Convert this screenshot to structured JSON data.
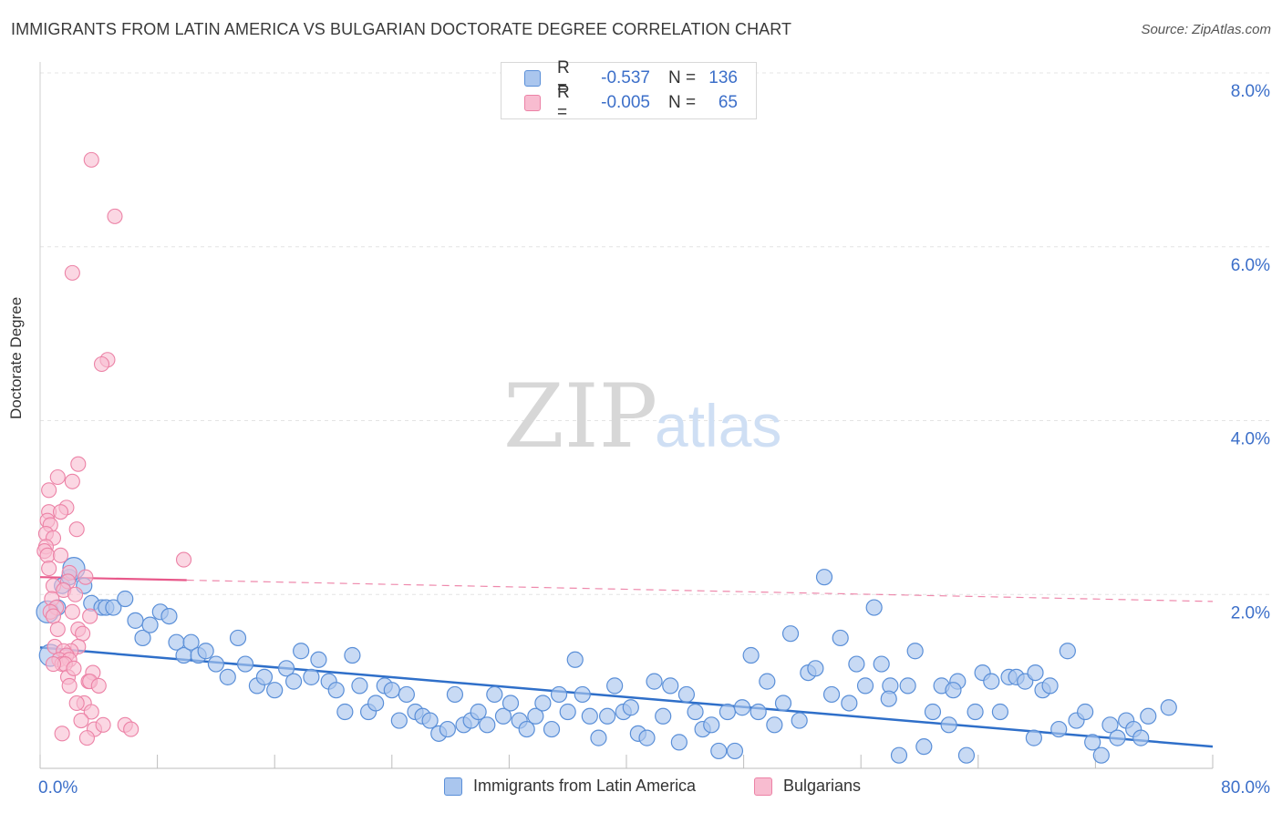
{
  "title": "IMMIGRANTS FROM LATIN AMERICA VS BULGARIAN DOCTORATE DEGREE CORRELATION CHART",
  "source": "Source: ZipAtlas.com",
  "watermark": {
    "zip": "ZIP",
    "atlas": "atlas"
  },
  "legend_top": {
    "rows": [
      {
        "r_label": "R =",
        "r_value": "-0.537",
        "n_label": "N =",
        "n_value": "136"
      },
      {
        "r_label": "R =",
        "r_value": "-0.005",
        "n_label": "N =",
        "n_value": "65"
      }
    ]
  },
  "legend_bottom": {
    "series1": "Immigrants from Latin America",
    "series2": "Bulgarians"
  },
  "colors": {
    "blue_fill": "#aac6ee",
    "blue_stroke": "#5a8fd8",
    "blue_line": "#2f6fc9",
    "pink_fill": "#f8bcd0",
    "pink_stroke": "#ec82a6",
    "pink_line": "#e8588a",
    "tick_text": "#3c6fc9",
    "grid": "#e4e4e4"
  },
  "chart_data": {
    "type": "scatter",
    "title": "IMMIGRANTS FROM LATIN AMERICA VS BULGARIAN DOCTORATE DEGREE CORRELATION CHART",
    "xlabel": "",
    "ylabel": "Doctorate Degree",
    "xlim": [
      0,
      80
    ],
    "ylim": [
      0,
      8.0
    ],
    "x_tick_labels": [
      "0.0%",
      "80.0%"
    ],
    "y_ticks": [
      2.0,
      4.0,
      6.0,
      8.0
    ],
    "y_tick_labels": [
      "2.0%",
      "4.0%",
      "6.0%",
      "8.0%"
    ],
    "grid": true,
    "series": [
      {
        "name": "Immigrants from Latin America",
        "r": -0.537,
        "n": 136,
        "trend": {
          "x": [
            0,
            80
          ],
          "y": [
            1.39,
            0.25
          ]
        },
        "points": [
          [
            0.5,
            1.8,
            2
          ],
          [
            0.7,
            1.3,
            2
          ],
          [
            1.2,
            1.85,
            1
          ],
          [
            1.5,
            2.1,
            1
          ],
          [
            2.0,
            2.2,
            1
          ],
          [
            2.3,
            2.3,
            2
          ],
          [
            3.0,
            2.1,
            1
          ],
          [
            3.5,
            1.9,
            1
          ],
          [
            4.2,
            1.85,
            1
          ],
          [
            4.5,
            1.85,
            1
          ],
          [
            5.0,
            1.85,
            1
          ],
          [
            5.8,
            1.95,
            1
          ],
          [
            6.5,
            1.7,
            1
          ],
          [
            7.0,
            1.5,
            1
          ],
          [
            7.5,
            1.65,
            1
          ],
          [
            8.2,
            1.8,
            1
          ],
          [
            8.8,
            1.75,
            1
          ],
          [
            9.3,
            1.45,
            1
          ],
          [
            9.8,
            1.3,
            1
          ],
          [
            10.3,
            1.45,
            1
          ],
          [
            10.8,
            1.3,
            1
          ],
          [
            11.3,
            1.35,
            1
          ],
          [
            12.0,
            1.2,
            1
          ],
          [
            12.8,
            1.05,
            1
          ],
          [
            13.5,
            1.5,
            1
          ],
          [
            14.0,
            1.2,
            1
          ],
          [
            14.8,
            0.95,
            1
          ],
          [
            15.3,
            1.05,
            1
          ],
          [
            16.0,
            0.9,
            1
          ],
          [
            16.8,
            1.15,
            1
          ],
          [
            17.3,
            1.0,
            1
          ],
          [
            17.8,
            1.35,
            1
          ],
          [
            18.5,
            1.05,
            1
          ],
          [
            19.0,
            1.25,
            1
          ],
          [
            19.7,
            1.0,
            1
          ],
          [
            20.2,
            0.9,
            1
          ],
          [
            20.8,
            0.65,
            1
          ],
          [
            21.3,
            1.3,
            1
          ],
          [
            21.8,
            0.95,
            1
          ],
          [
            22.4,
            0.65,
            1
          ],
          [
            22.9,
            0.75,
            1
          ],
          [
            23.5,
            0.95,
            1
          ],
          [
            24.0,
            0.9,
            1
          ],
          [
            24.5,
            0.55,
            1
          ],
          [
            25.0,
            0.85,
            1
          ],
          [
            25.6,
            0.65,
            1
          ],
          [
            26.1,
            0.6,
            1
          ],
          [
            26.6,
            0.55,
            1
          ],
          [
            27.2,
            0.4,
            1
          ],
          [
            27.8,
            0.45,
            1
          ],
          [
            28.3,
            0.85,
            1
          ],
          [
            28.9,
            0.5,
            1
          ],
          [
            29.4,
            0.55,
            1
          ],
          [
            29.9,
            0.65,
            1
          ],
          [
            30.5,
            0.5,
            1
          ],
          [
            31.0,
            0.85,
            1
          ],
          [
            31.6,
            0.6,
            1
          ],
          [
            32.1,
            0.75,
            1
          ],
          [
            32.7,
            0.55,
            1
          ],
          [
            33.2,
            0.45,
            1
          ],
          [
            33.8,
            0.6,
            1
          ],
          [
            34.3,
            0.75,
            1
          ],
          [
            34.9,
            0.45,
            1
          ],
          [
            35.4,
            0.85,
            1
          ],
          [
            36.0,
            0.65,
            1
          ],
          [
            36.5,
            1.25,
            1
          ],
          [
            37.0,
            0.85,
            1
          ],
          [
            37.5,
            0.6,
            1
          ],
          [
            38.1,
            0.35,
            1
          ],
          [
            38.7,
            0.6,
            1
          ],
          [
            39.2,
            0.95,
            1
          ],
          [
            39.8,
            0.65,
            1
          ],
          [
            40.3,
            0.7,
            1
          ],
          [
            40.8,
            0.4,
            1
          ],
          [
            41.4,
            0.35,
            1
          ],
          [
            41.9,
            1.0,
            1
          ],
          [
            42.5,
            0.6,
            1
          ],
          [
            43.0,
            0.95,
            1
          ],
          [
            43.6,
            0.3,
            1
          ],
          [
            44.1,
            0.85,
            1
          ],
          [
            44.7,
            0.65,
            1
          ],
          [
            45.2,
            0.45,
            1
          ],
          [
            45.8,
            0.5,
            1
          ],
          [
            46.3,
            0.2,
            1
          ],
          [
            46.9,
            0.65,
            1
          ],
          [
            47.4,
            0.2,
            1
          ],
          [
            47.9,
            0.7,
            1
          ],
          [
            48.5,
            1.3,
            1
          ],
          [
            49.0,
            0.65,
            1
          ],
          [
            49.6,
            1.0,
            1
          ],
          [
            50.1,
            0.5,
            1
          ],
          [
            50.7,
            0.75,
            1
          ],
          [
            51.2,
            1.55,
            1
          ],
          [
            51.8,
            0.55,
            1
          ],
          [
            52.4,
            1.1,
            1
          ],
          [
            52.9,
            1.15,
            1
          ],
          [
            53.5,
            2.2,
            1
          ],
          [
            54.0,
            0.85,
            1
          ],
          [
            54.6,
            1.5,
            1
          ],
          [
            55.2,
            0.75,
            1
          ],
          [
            55.7,
            1.2,
            1
          ],
          [
            56.3,
            0.95,
            1
          ],
          [
            56.9,
            1.85,
            1
          ],
          [
            57.4,
            1.2,
            1
          ],
          [
            58.0,
            0.95,
            1
          ],
          [
            58.6,
            0.15,
            1
          ],
          [
            59.2,
            0.95,
            1
          ],
          [
            59.7,
            1.35,
            1
          ],
          [
            60.3,
            0.25,
            1
          ],
          [
            60.9,
            0.65,
            1
          ],
          [
            61.5,
            0.95,
            1
          ],
          [
            62.0,
            0.5,
            1
          ],
          [
            62.6,
            1.0,
            1
          ],
          [
            63.2,
            0.15,
            1
          ],
          [
            63.8,
            0.65,
            1
          ],
          [
            64.3,
            1.1,
            1
          ],
          [
            64.9,
            1.0,
            1
          ],
          [
            65.5,
            0.65,
            1
          ],
          [
            66.1,
            1.05,
            1
          ],
          [
            66.6,
            1.05,
            1
          ],
          [
            67.2,
            1.0,
            1
          ],
          [
            67.8,
            0.35,
            1
          ],
          [
            68.4,
            0.9,
            1
          ],
          [
            68.9,
            0.95,
            1
          ],
          [
            69.5,
            0.45,
            1
          ],
          [
            70.1,
            1.35,
            1
          ],
          [
            70.7,
            0.55,
            1
          ],
          [
            71.3,
            0.65,
            1
          ],
          [
            71.8,
            0.3,
            1
          ],
          [
            72.4,
            0.15,
            1
          ],
          [
            73.0,
            0.5,
            1
          ],
          [
            73.5,
            0.35,
            1
          ],
          [
            74.1,
            0.55,
            1
          ],
          [
            74.6,
            0.45,
            1
          ],
          [
            75.1,
            0.35,
            1
          ],
          [
            75.6,
            0.6,
            1
          ],
          [
            77.0,
            0.7,
            1
          ],
          [
            67.9,
            1.1,
            1
          ],
          [
            62.3,
            0.9,
            1
          ],
          [
            57.9,
            0.8,
            1
          ]
        ]
      },
      {
        "name": "Bulgarians",
        "r": -0.005,
        "n": 65,
        "trend": {
          "x": [
            0,
            80
          ],
          "y": [
            2.2,
            1.92
          ]
        },
        "points": [
          [
            3.5,
            7.0
          ],
          [
            5.1,
            6.35
          ],
          [
            2.2,
            5.7
          ],
          [
            4.6,
            4.7
          ],
          [
            4.2,
            4.65
          ],
          [
            2.6,
            3.5
          ],
          [
            1.2,
            3.35
          ],
          [
            2.2,
            3.3
          ],
          [
            0.6,
            3.2
          ],
          [
            1.8,
            3.0
          ],
          [
            0.6,
            2.95
          ],
          [
            1.4,
            2.95
          ],
          [
            0.5,
            2.85
          ],
          [
            0.7,
            2.8
          ],
          [
            2.5,
            2.75
          ],
          [
            0.4,
            2.7
          ],
          [
            0.9,
            2.65
          ],
          [
            0.4,
            2.55
          ],
          [
            0.3,
            2.5
          ],
          [
            0.5,
            2.45
          ],
          [
            1.4,
            2.45
          ],
          [
            9.8,
            2.4
          ],
          [
            0.6,
            2.3
          ],
          [
            2.0,
            2.25
          ],
          [
            3.1,
            2.2
          ],
          [
            1.9,
            2.15
          ],
          [
            0.9,
            2.1
          ],
          [
            1.6,
            2.05
          ],
          [
            2.4,
            2.0
          ],
          [
            0.8,
            1.95
          ],
          [
            1.1,
            1.85
          ],
          [
            2.2,
            1.8
          ],
          [
            3.4,
            1.75
          ],
          [
            0.7,
            1.8
          ],
          [
            0.9,
            1.75
          ],
          [
            2.6,
            1.6
          ],
          [
            2.9,
            1.55
          ],
          [
            2.6,
            1.4
          ],
          [
            1.0,
            1.4
          ],
          [
            2.1,
            1.35
          ],
          [
            1.6,
            1.35
          ],
          [
            1.8,
            1.3
          ],
          [
            1.3,
            1.25
          ],
          [
            2.0,
            1.25
          ],
          [
            1.5,
            1.2
          ],
          [
            1.7,
            1.2
          ],
          [
            3.6,
            1.1
          ],
          [
            3.3,
            1.0
          ],
          [
            1.9,
            1.05
          ],
          [
            2.0,
            0.95
          ],
          [
            3.4,
            1.0
          ],
          [
            4.0,
            0.95
          ],
          [
            3.0,
            0.75
          ],
          [
            2.5,
            0.75
          ],
          [
            3.5,
            0.65
          ],
          [
            2.8,
            0.55
          ],
          [
            3.7,
            0.45
          ],
          [
            4.3,
            0.5
          ],
          [
            5.8,
            0.5
          ],
          [
            6.2,
            0.45
          ],
          [
            1.5,
            0.4
          ],
          [
            3.2,
            0.35
          ],
          [
            0.9,
            1.2
          ],
          [
            2.3,
            1.15
          ],
          [
            1.2,
            1.6
          ]
        ]
      }
    ]
  }
}
